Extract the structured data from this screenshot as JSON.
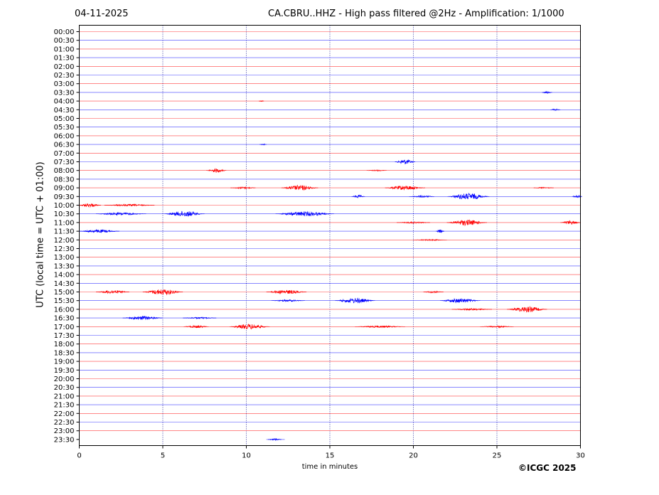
{
  "header": {
    "date": "04-11-2025",
    "title": "CA.CBRU..HHZ - High pass filtered @2Hz - Amplification: 1/1000"
  },
  "footer": {
    "copyright": "©ICGC 2025"
  },
  "colors": {
    "red_trace": "#ff0000",
    "blue_trace": "#0000ff",
    "grid": "#00008b",
    "axes": "#000000"
  },
  "chart_data": {
    "type": "line",
    "title": "CA.CBRU..HHZ - High pass filtered @2Hz - Amplification: 1/1000",
    "xlabel": "time in minutes",
    "ylabel": "UTC (local time = UTC + 01:00)",
    "xlim": [
      0,
      30
    ],
    "x_ticks": [
      "0",
      "5",
      "10",
      "15",
      "20",
      "25",
      "30"
    ],
    "grid": "vertical dotted at x = 5, 10, 15, 20, 25",
    "rows": [
      "00:00",
      "00:30",
      "01:00",
      "01:30",
      "02:00",
      "02:30",
      "03:00",
      "03:30",
      "04:00",
      "04:30",
      "05:00",
      "05:30",
      "06:00",
      "06:30",
      "07:00",
      "07:30",
      "08:00",
      "08:30",
      "09:00",
      "09:30",
      "10:00",
      "10:30",
      "11:00",
      "11:30",
      "12:00",
      "12:30",
      "13:00",
      "13:30",
      "14:00",
      "14:30",
      "15:00",
      "15:30",
      "16:00",
      "16:30",
      "17:00",
      "17:30",
      "18:00",
      "18:30",
      "19:00",
      "19:30",
      "20:00",
      "20:30",
      "21:00",
      "21:30",
      "22:00",
      "22:30",
      "23:00",
      "23:30"
    ],
    "row_colors": "alternating red (on the hour) and blue (half hour)",
    "traces_until_row": "23:30 (partial, ends near minute 12.3)",
    "events": [
      {
        "row": "03:30",
        "minute": 28.0,
        "amplitude": 0.4,
        "width": 0.6
      },
      {
        "row": "04:00",
        "minute": 10.9,
        "amplitude": 0.2,
        "width": 0.3
      },
      {
        "row": "04:30",
        "minute": 28.5,
        "amplitude": 0.3,
        "width": 0.6
      },
      {
        "row": "06:30",
        "minute": 11.0,
        "amplitude": 0.2,
        "width": 0.4
      },
      {
        "row": "07:30",
        "minute": 19.5,
        "amplitude": 0.8,
        "width": 1.2
      },
      {
        "row": "08:00",
        "minute": 8.2,
        "amplitude": 0.6,
        "width": 1.2
      },
      {
        "row": "08:00",
        "minute": 17.8,
        "amplitude": 0.2,
        "width": 1.2
      },
      {
        "row": "09:00",
        "minute": 13.2,
        "amplitude": 0.8,
        "width": 2.2
      },
      {
        "row": "09:00",
        "minute": 19.5,
        "amplitude": 0.7,
        "width": 2.4
      },
      {
        "row": "09:00",
        "minute": 9.8,
        "amplitude": 0.3,
        "width": 1.5
      },
      {
        "row": "09:00",
        "minute": 27.8,
        "amplitude": 0.2,
        "width": 1.2
      },
      {
        "row": "09:30",
        "minute": 16.7,
        "amplitude": 0.5,
        "width": 0.8
      },
      {
        "row": "09:30",
        "minute": 23.3,
        "amplitude": 1.0,
        "width": 2.5
      },
      {
        "row": "09:30",
        "minute": 29.8,
        "amplitude": 0.5,
        "width": 0.6
      },
      {
        "row": "09:30",
        "minute": 20.5,
        "amplitude": 0.3,
        "width": 1.5
      },
      {
        "row": "10:00",
        "minute": 0.6,
        "amplitude": 0.6,
        "width": 1.4
      },
      {
        "row": "10:00",
        "minute": 3.0,
        "amplitude": 0.3,
        "width": 3.0
      },
      {
        "row": "10:30",
        "minute": 6.3,
        "amplitude": 0.9,
        "width": 2.4
      },
      {
        "row": "10:30",
        "minute": 13.5,
        "amplitude": 0.7,
        "width": 3.5
      },
      {
        "row": "10:30",
        "minute": 2.5,
        "amplitude": 0.4,
        "width": 3.0
      },
      {
        "row": "11:00",
        "minute": 23.2,
        "amplitude": 0.9,
        "width": 2.4
      },
      {
        "row": "11:00",
        "minute": 29.4,
        "amplitude": 0.6,
        "width": 1.2
      },
      {
        "row": "11:00",
        "minute": 20.0,
        "amplitude": 0.25,
        "width": 2.0
      },
      {
        "row": "11:30",
        "minute": 1.2,
        "amplitude": 0.5,
        "width": 2.4
      },
      {
        "row": "11:30",
        "minute": 21.6,
        "amplitude": 0.5,
        "width": 0.5
      },
      {
        "row": "12:00",
        "minute": 21.0,
        "amplitude": 0.2,
        "width": 2.0
      },
      {
        "row": "15:00",
        "minute": 5.0,
        "amplitude": 0.9,
        "width": 2.4
      },
      {
        "row": "15:00",
        "minute": 12.4,
        "amplitude": 0.6,
        "width": 2.4
      },
      {
        "row": "15:00",
        "minute": 2.0,
        "amplitude": 0.5,
        "width": 2.0
      },
      {
        "row": "15:00",
        "minute": 21.2,
        "amplitude": 0.3,
        "width": 1.2
      },
      {
        "row": "15:30",
        "minute": 16.5,
        "amplitude": 0.8,
        "width": 2.4
      },
      {
        "row": "15:30",
        "minute": 22.8,
        "amplitude": 0.7,
        "width": 2.4
      },
      {
        "row": "15:30",
        "minute": 12.5,
        "amplitude": 0.3,
        "width": 2.0
      },
      {
        "row": "16:00",
        "minute": 26.8,
        "amplitude": 0.9,
        "width": 2.4
      },
      {
        "row": "16:00",
        "minute": 23.5,
        "amplitude": 0.3,
        "width": 2.4
      },
      {
        "row": "16:30",
        "minute": 3.8,
        "amplitude": 0.6,
        "width": 2.4
      },
      {
        "row": "16:30",
        "minute": 7.2,
        "amplitude": 0.25,
        "width": 2.0
      },
      {
        "row": "17:00",
        "minute": 10.2,
        "amplitude": 0.8,
        "width": 2.4
      },
      {
        "row": "17:00",
        "minute": 7.0,
        "amplitude": 0.4,
        "width": 1.5
      },
      {
        "row": "17:00",
        "minute": 18.0,
        "amplitude": 0.3,
        "width": 3.0
      },
      {
        "row": "17:00",
        "minute": 25.0,
        "amplitude": 0.25,
        "width": 2.0
      },
      {
        "row": "23:30",
        "minute": 11.7,
        "amplitude": 0.3,
        "width": 0.8
      }
    ]
  }
}
